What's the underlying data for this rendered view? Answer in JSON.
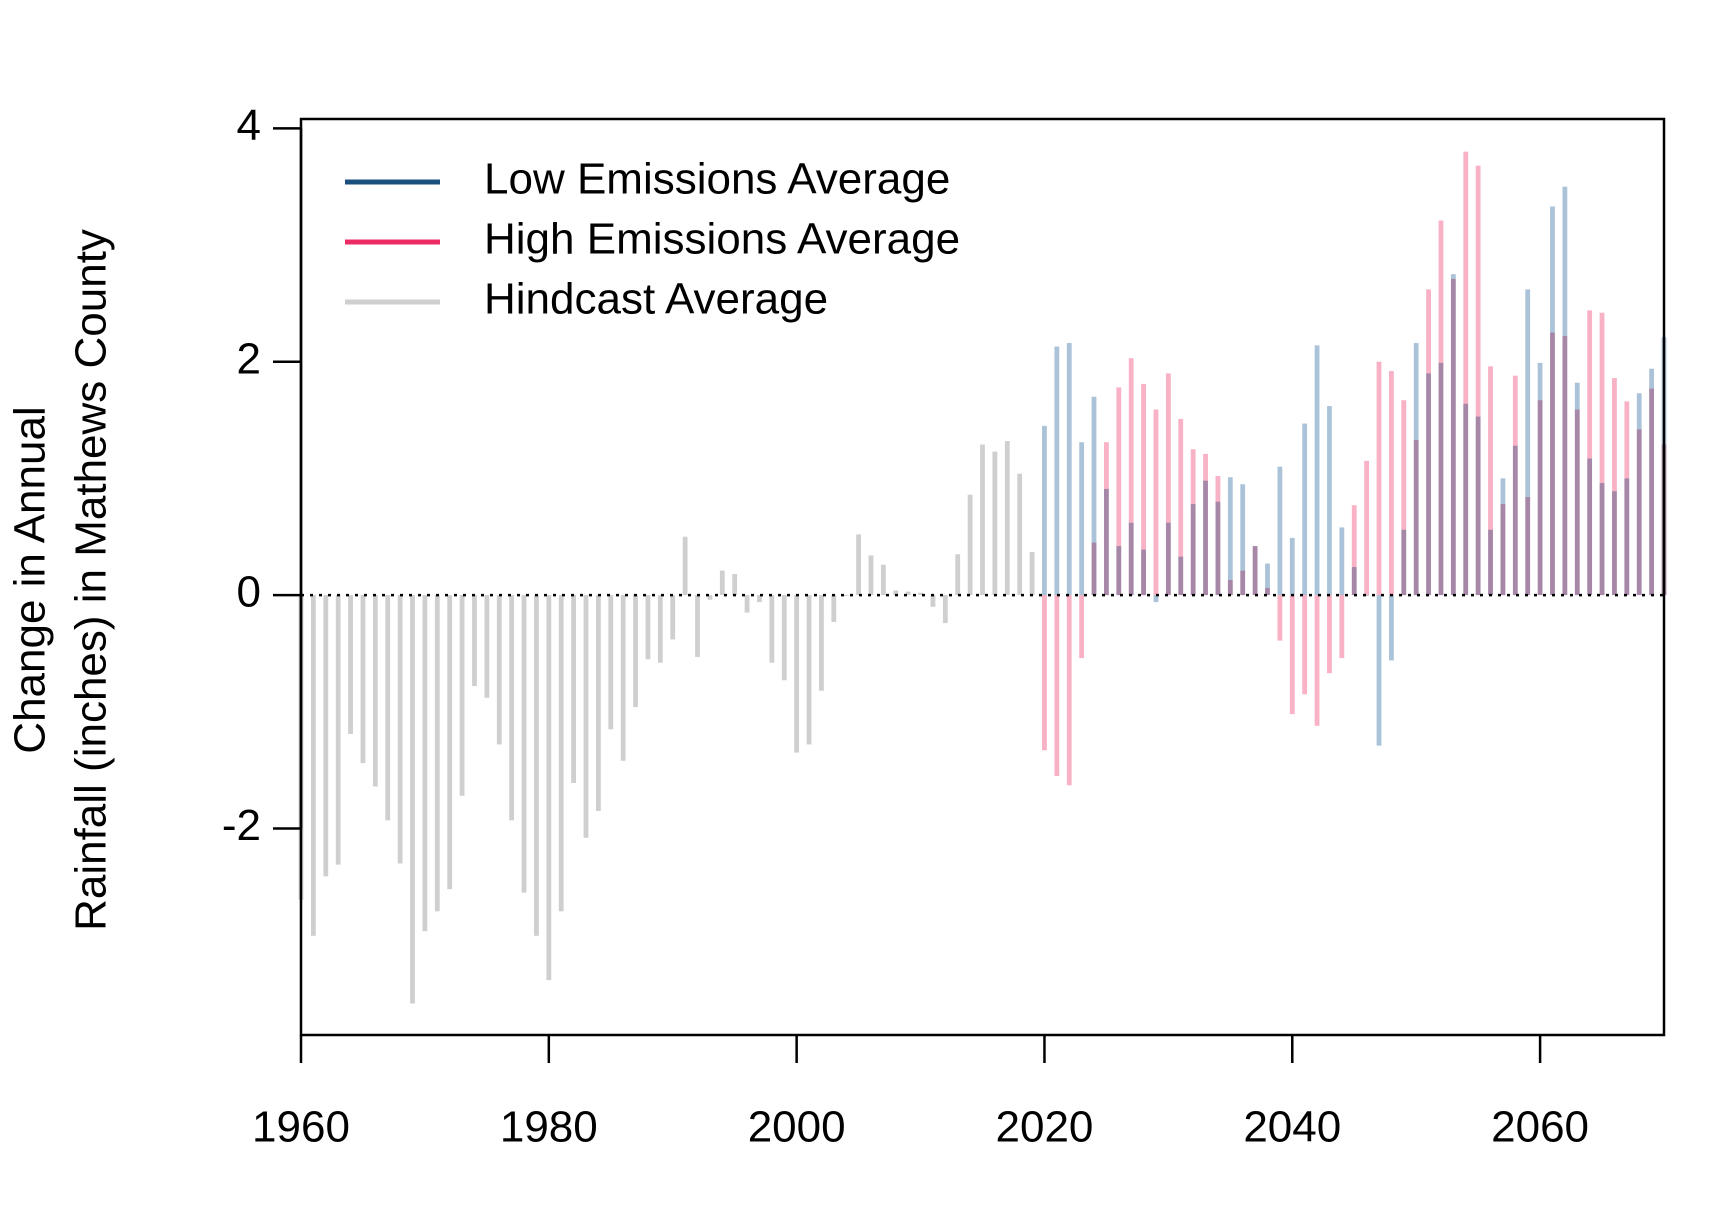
{
  "chart_data": {
    "type": "bar",
    "ylabel": [
      "Change in Annual",
      "Rainfall (inches) in Mathews County"
    ],
    "x": [
      1960,
      1961,
      1962,
      1963,
      1964,
      1965,
      1966,
      1967,
      1968,
      1969,
      1970,
      1971,
      1972,
      1973,
      1974,
      1975,
      1976,
      1977,
      1978,
      1979,
      1980,
      1981,
      1982,
      1983,
      1984,
      1985,
      1986,
      1987,
      1988,
      1989,
      1990,
      1991,
      1992,
      1993,
      1994,
      1995,
      1996,
      1997,
      1998,
      1999,
      2000,
      2001,
      2002,
      2003,
      2004,
      2005,
      2006,
      2007,
      2008,
      2009,
      2010,
      2011,
      2012,
      2013,
      2014,
      2015,
      2016,
      2017,
      2018,
      2019,
      2020,
      2021,
      2022,
      2023,
      2024,
      2025,
      2026,
      2027,
      2028,
      2029,
      2030,
      2031,
      2032,
      2033,
      2034,
      2035,
      2036,
      2037,
      2038,
      2039,
      2040,
      2041,
      2042,
      2043,
      2044,
      2045,
      2046,
      2047,
      2048,
      2049,
      2050,
      2051,
      2052,
      2053,
      2054,
      2055,
      2056,
      2057,
      2058,
      2059,
      2060,
      2061,
      2062,
      2063,
      2064,
      2065,
      2066,
      2067,
      2068,
      2069,
      2070
    ],
    "series": [
      {
        "name": "Low Emissions Average",
        "color": "#1b4f7e",
        "bar_color": "#9cb9d1",
        "values": [
          null,
          null,
          null,
          null,
          null,
          null,
          null,
          null,
          null,
          null,
          null,
          null,
          null,
          null,
          null,
          null,
          null,
          null,
          null,
          null,
          null,
          null,
          null,
          null,
          null,
          null,
          null,
          null,
          null,
          null,
          null,
          null,
          null,
          null,
          null,
          null,
          null,
          null,
          null,
          null,
          null,
          null,
          null,
          null,
          null,
          null,
          null,
          null,
          null,
          null,
          null,
          null,
          null,
          null,
          null,
          null,
          null,
          null,
          null,
          null,
          1.45,
          2.13,
          2.16,
          1.31,
          1.7,
          0.91,
          0.42,
          0.62,
          0.39,
          -0.06,
          0.62,
          0.33,
          0.78,
          0.98,
          0.8,
          1.01,
          0.95,
          0.42,
          0.27,
          1.1,
          0.49,
          1.47,
          2.14,
          1.62,
          0.58,
          0.24,
          0.0,
          -1.29,
          -0.56,
          0.56,
          2.16,
          1.9,
          1.99,
          2.75,
          1.64,
          1.53,
          0.56,
          1.0,
          1.28,
          2.62,
          1.99,
          3.33,
          3.5,
          1.82,
          1.17,
          0.96,
          0.89,
          1.0,
          1.73,
          1.94,
          2.21
        ]
      },
      {
        "name": "High Emissions Average",
        "color": "#ec2a63",
        "bar_color": "#f7a3bb",
        "values": [
          null,
          null,
          null,
          null,
          null,
          null,
          null,
          null,
          null,
          null,
          null,
          null,
          null,
          null,
          null,
          null,
          null,
          null,
          null,
          null,
          null,
          null,
          null,
          null,
          null,
          null,
          null,
          null,
          null,
          null,
          null,
          null,
          null,
          null,
          null,
          null,
          null,
          null,
          null,
          null,
          null,
          null,
          null,
          null,
          null,
          null,
          null,
          null,
          null,
          null,
          null,
          null,
          null,
          null,
          null,
          null,
          null,
          null,
          null,
          null,
          -1.33,
          -1.55,
          -1.63,
          -0.54,
          0.45,
          1.31,
          1.78,
          2.03,
          1.81,
          1.59,
          1.9,
          1.51,
          1.25,
          1.21,
          1.02,
          0.13,
          0.21,
          0.42,
          0.06,
          -0.39,
          -1.02,
          -0.85,
          -1.12,
          -0.67,
          -0.54,
          0.77,
          1.15,
          2.0,
          1.92,
          1.67,
          1.33,
          2.62,
          3.21,
          2.71,
          3.8,
          3.68,
          1.96,
          0.78,
          1.88,
          0.84,
          1.67,
          2.25,
          2.22,
          1.59,
          2.44,
          2.42,
          1.86,
          1.66,
          1.42,
          1.77,
          1.29
        ]
      },
      {
        "name": "Hindcast Average",
        "color": "#cfcfcf",
        "bar_color": "#cfcfcf",
        "values": [
          -2.61,
          -2.92,
          -2.41,
          -2.31,
          -1.19,
          -1.44,
          -1.64,
          -1.93,
          -2.3,
          -3.5,
          -2.88,
          -2.71,
          -2.52,
          -1.72,
          -0.78,
          -0.88,
          -1.28,
          -1.93,
          -2.55,
          -2.92,
          -3.3,
          -2.71,
          -1.61,
          -2.08,
          -1.85,
          -1.15,
          -1.42,
          -0.96,
          -0.55,
          -0.58,
          -0.38,
          0.5,
          -0.53,
          -0.04,
          0.21,
          0.18,
          -0.15,
          -0.06,
          -0.58,
          -0.73,
          -1.35,
          -1.28,
          -0.82,
          -0.23,
          0.0,
          0.52,
          0.34,
          0.26,
          0.04,
          0.03,
          0.02,
          -0.1,
          -0.24,
          0.35,
          0.86,
          1.29,
          1.23,
          1.32,
          1.04,
          0.37,
          null,
          null,
          null,
          null,
          null,
          null,
          null,
          null,
          null,
          null,
          null,
          null,
          null,
          null,
          null,
          null,
          null,
          null,
          null,
          null,
          null,
          null,
          null,
          null,
          null,
          null,
          null,
          null,
          null,
          null,
          null,
          null,
          null,
          null,
          null,
          null,
          null,
          null,
          null,
          null,
          null,
          null,
          null,
          null,
          null,
          null,
          null,
          null,
          null,
          null,
          null
        ]
      }
    ],
    "xlim": [
      1960,
      2070
    ],
    "xticks": [
      1960,
      1980,
      2000,
      2020,
      2040,
      2060
    ],
    "ylim": [
      -3.77,
      4.08
    ],
    "yticks": [
      -2,
      0,
      2,
      4
    ],
    "reference_line": 0,
    "legend": "top-left"
  }
}
